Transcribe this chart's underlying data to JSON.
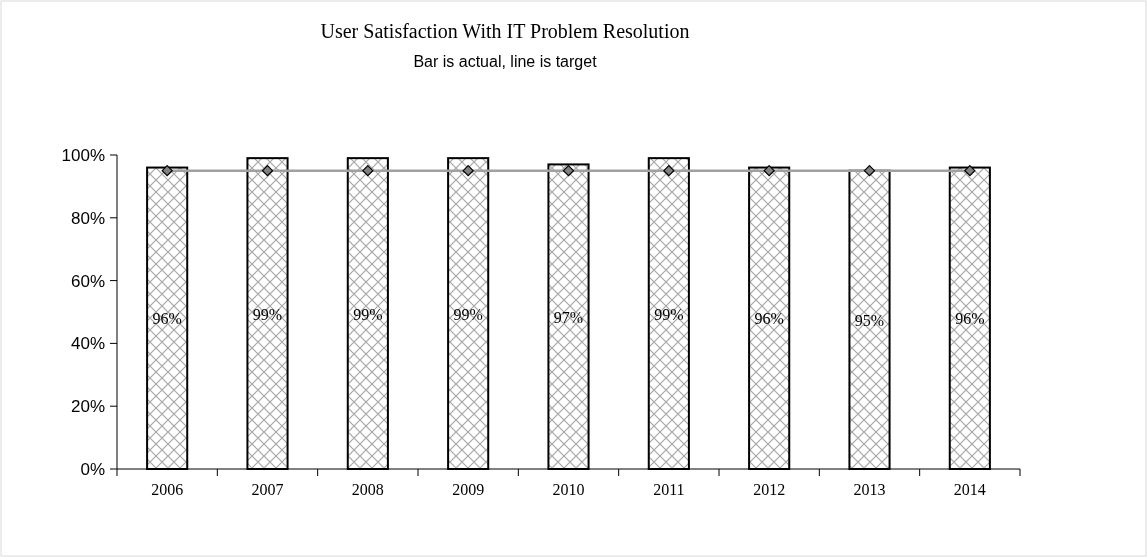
{
  "chart_data": {
    "type": "bar",
    "title": "User Satisfaction With IT Problem Resolution",
    "subtitle": "Bar is actual, line is target",
    "categories": [
      "2006",
      "2007",
      "2008",
      "2009",
      "2010",
      "2011",
      "2012",
      "2013",
      "2014"
    ],
    "series": [
      {
        "color": "#000000",
        "values": [
          96,
          99,
          99,
          99,
          97,
          99,
          96,
          95,
          96
        ],
        "value_labels": [
          "96%",
          "99%",
          "99%",
          "99%",
          "97%",
          "99%",
          "96%",
          "95%",
          "96%"
        ]
      },
      {
        "type": "line",
        "color": "#a0a0a0",
        "marker": "diamond",
        "values": [
          95,
          95,
          95,
          95,
          95,
          95,
          95,
          95,
          95
        ]
      }
    ],
    "ylim": [
      0,
      100
    ],
    "yticks": [
      {
        "value": 0,
        "label": "0%"
      },
      {
        "value": 20,
        "label": "20%"
      },
      {
        "value": 40,
        "label": "40%"
      },
      {
        "value": 60,
        "label": "60%"
      },
      {
        "value": 80,
        "label": "80%"
      },
      {
        "value": 100,
        "label": "100%"
      }
    ],
    "grid": false
  }
}
